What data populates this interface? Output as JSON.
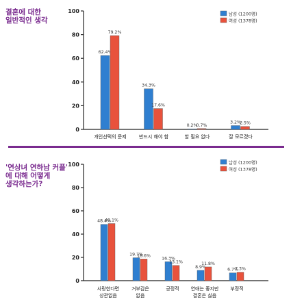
{
  "charts": [
    {
      "title": "결혼에 대한\n일반적인 생각",
      "legend": [
        "남성 (1200명)",
        "여성 (1378명)"
      ]
    },
    {
      "title": "'연상녀 연하남 커플'\n에 대해 어떻게\n생각하는가?",
      "legend": [
        "남성 (1200명)",
        "여성 (1378명)"
      ]
    }
  ],
  "colors": {
    "male": "#2f7fd0",
    "female": "#e8523c",
    "divider": "#7a2b8f",
    "title": "#7a2b8f"
  },
  "chart_data": [
    {
      "type": "bar",
      "title": "결혼에 대한 일반적인 생각",
      "categories": [
        "개인선택의 문제",
        "반드시 해야 함",
        "할 필요 없다",
        "잘 모르겠다"
      ],
      "series": [
        {
          "name": "남성 (1200명)",
          "values": [
            62.4,
            34.3,
            0.2,
            3.2
          ]
        },
        {
          "name": "여성 (1378명)",
          "values": [
            79.2,
            17.6,
            0.7,
            2.5
          ]
        }
      ],
      "value_labels": [
        [
          "62.4%",
          "34.3%",
          "0.2%",
          "3.2%"
        ],
        [
          "79.2%",
          "17.6%",
          "0.7%",
          "2.5%"
        ]
      ],
      "yticks": [
        "0",
        "20",
        "40",
        "60",
        "80",
        "100"
      ],
      "ylim": [
        0,
        100
      ],
      "legend_position": "top-right",
      "grid": false
    },
    {
      "type": "bar",
      "title": "'연상녀 연하남 커플'에 대해 어떻게 생각하는가?",
      "categories": [
        "사랑한다면\n상관없음",
        "거부감은\n없음",
        "긍정적",
        "연애는 좋지만\n결혼은 싫음",
        "부정적"
      ],
      "series": [
        {
          "name": "남성 (1200명)",
          "values": [
            48.4,
            19.7,
            16.3,
            8.9,
            6.7
          ]
        },
        {
          "name": "여성 (1378명)",
          "values": [
            49.1,
            18.6,
            13.1,
            11.8,
            7.3
          ]
        }
      ],
      "value_labels": [
        [
          "48.4%",
          "19.7%",
          "16.3%",
          "8.9%",
          "6.7%"
        ],
        [
          "49.1%",
          "18.6%",
          "13.1%",
          "11.8%",
          "7.3%"
        ]
      ],
      "yticks": [
        "0",
        "20",
        "40",
        "60",
        "80",
        "100"
      ],
      "ylim": [
        0,
        100
      ],
      "legend_position": "top-right",
      "grid": false
    }
  ]
}
